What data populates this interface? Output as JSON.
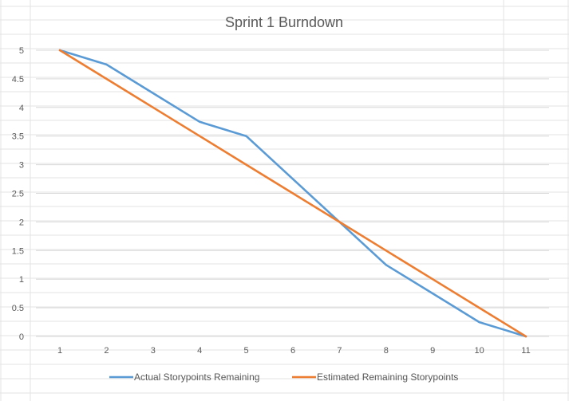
{
  "chart_data": {
    "type": "line",
    "title": "Sprint 1 Burndown",
    "xlabel": "",
    "ylabel": "",
    "categories": [
      "1",
      "2",
      "3",
      "4",
      "5",
      "6",
      "7",
      "8",
      "9",
      "10",
      "11"
    ],
    "y_ticks": [
      "0",
      "0.5",
      "1",
      "1.5",
      "2",
      "2.5",
      "3",
      "3.5",
      "4",
      "4.5",
      "5"
    ],
    "ylim": [
      0,
      5
    ],
    "grid": true,
    "legend_position": "bottom",
    "series": [
      {
        "name": "Actual Storypoints Remaining",
        "color": "#5b9bd5",
        "values": [
          5,
          4.75,
          4.25,
          3.75,
          3.5,
          2.75,
          2,
          1.25,
          0.75,
          0.25,
          0
        ]
      },
      {
        "name": "Estimated Remaining Storypoints",
        "color": "#ed7d31",
        "values": [
          5,
          4.5,
          4,
          3.5,
          3,
          2.5,
          2,
          1.5,
          1,
          0.5,
          0
        ]
      }
    ]
  }
}
